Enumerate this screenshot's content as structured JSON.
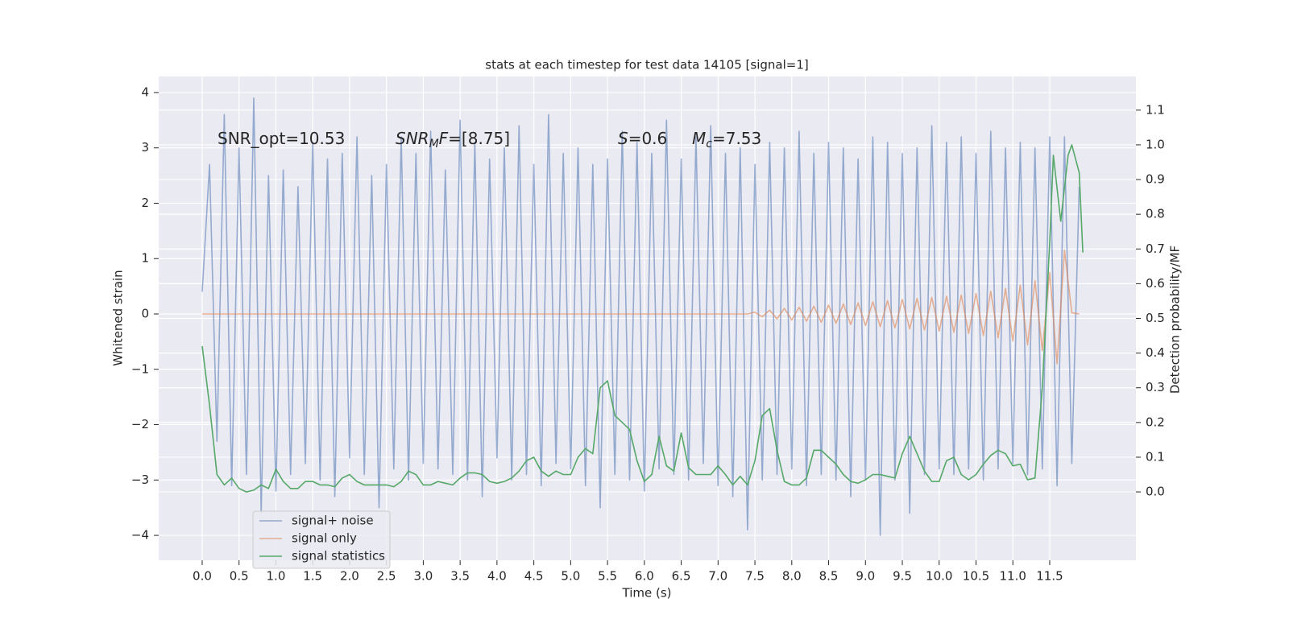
{
  "chart_data": {
    "type": "line",
    "title": "stats at each timestep for test data 14105 [signal=1]",
    "xlabel": "Time (s)",
    "ylabel": "Whitened strain",
    "y2label": "Detection probability/MF",
    "annotations": [
      [
        "SNR_opt=10.53"
      ],
      [
        "SNR",
        "M",
        "F",
        "=[8.75]"
      ],
      [
        "S",
        "=0.6"
      ],
      [
        "M",
        "c",
        "=7.53"
      ]
    ],
    "xlim": [
      -0.59,
      12.67
    ],
    "ylim": [
      -4.45,
      4.29
    ],
    "y2lim": [
      -0.197,
      1.197
    ],
    "xticks": [
      {
        "value": 0,
        "label": "0.0"
      },
      0.5,
      {
        "value": 1,
        "label": "1.0"
      },
      1.5,
      {
        "value": 2,
        "label": "2.0"
      },
      2.5,
      {
        "value": 3,
        "label": "3.0"
      },
      3.5,
      {
        "value": 4,
        "label": "4.0"
      },
      4.5,
      {
        "value": 5,
        "label": "5.0"
      },
      5.5,
      {
        "value": 6,
        "label": "6.0"
      },
      6.5,
      {
        "value": 7,
        "label": "7.0"
      },
      7.5,
      {
        "value": 8,
        "label": "8.0"
      },
      8.5,
      {
        "value": 9,
        "label": "9.0"
      },
      9.5,
      {
        "value": 10,
        "label": "10.0"
      },
      10.5,
      {
        "value": 11,
        "label": "11.0"
      },
      11.5
    ],
    "yticks": [
      {
        "value": -4,
        "label": "−4"
      },
      {
        "value": -3,
        "label": "−3"
      },
      {
        "value": -2,
        "label": "−2"
      },
      {
        "value": -1,
        "label": "−1"
      },
      0,
      1,
      2,
      3,
      4
    ],
    "y2ticks": [
      {
        "value": 0,
        "label": "0.0"
      },
      0.1,
      0.2,
      0.3,
      0.4,
      0.5,
      0.6,
      0.7,
      0.8,
      0.9,
      {
        "value": 1,
        "label": "1.0"
      },
      1.1
    ],
    "grid": true,
    "legend": "lower left",
    "background": "#eaeaf2",
    "series": [
      {
        "name": "signal+ noise",
        "color": "#4c72b0",
        "x": [
          0.0,
          0.1,
          0.2,
          0.3,
          0.4,
          0.5,
          0.6,
          0.7,
          0.8,
          0.9,
          1.0,
          1.1,
          1.2,
          1.3,
          1.4,
          1.5,
          1.6,
          1.7,
          1.8,
          1.9,
          2.0,
          2.1,
          2.2,
          2.3,
          2.4,
          2.5,
          2.6,
          2.7,
          2.8,
          2.9,
          3.0,
          3.1,
          3.2,
          3.3,
          3.4,
          3.5,
          3.6,
          3.7,
          3.8,
          3.9,
          4.0,
          4.1,
          4.2,
          4.3,
          4.4,
          4.5,
          4.6,
          4.7,
          4.8,
          4.9,
          5.0,
          5.1,
          5.2,
          5.3,
          5.4,
          5.5,
          5.6,
          5.7,
          5.8,
          5.9,
          6.0,
          6.1,
          6.2,
          6.3,
          6.4,
          6.5,
          6.6,
          6.7,
          6.8,
          6.9,
          7.0,
          7.1,
          7.2,
          7.3,
          7.4,
          7.5,
          7.6,
          7.7,
          7.8,
          7.9,
          8.0,
          8.1,
          8.2,
          8.3,
          8.4,
          8.5,
          8.6,
          8.7,
          8.8,
          8.9,
          9.0,
          9.1,
          9.2,
          9.3,
          9.4,
          9.5,
          9.6,
          9.7,
          9.8,
          9.9,
          10.0,
          10.1,
          10.2,
          10.3,
          10.4,
          10.5,
          10.6,
          10.7,
          10.8,
          10.9,
          11.0,
          11.1,
          11.2,
          11.3,
          11.4,
          11.5,
          11.6,
          11.7,
          11.8,
          11.9
        ],
        "values": [
          0.4,
          2.7,
          -2.3,
          3.6,
          -3.1,
          3.0,
          -2.9,
          3.9,
          -3.6,
          2.5,
          -3.2,
          2.6,
          -2.9,
          2.3,
          -2.7,
          3.1,
          -3.0,
          2.8,
          -3.3,
          2.9,
          -2.6,
          3.2,
          -2.9,
          2.5,
          -3.5,
          2.7,
          -2.8,
          3.2,
          -3.0,
          2.9,
          -2.7,
          3.3,
          -2.8,
          2.6,
          -2.9,
          3.5,
          -3.0,
          3.1,
          -3.3,
          2.8,
          -2.6,
          3.0,
          -3.0,
          3.4,
          -2.9,
          2.7,
          -3.1,
          3.6,
          -2.7,
          2.9,
          -2.8,
          3.0,
          -3.1,
          2.7,
          -3.5,
          2.8,
          -2.9,
          3.3,
          -3.0,
          3.1,
          -3.2,
          2.9,
          -2.8,
          3.5,
          -2.9,
          2.8,
          -3.0,
          3.2,
          -2.7,
          3.4,
          -3.1,
          2.9,
          -3.3,
          3.0,
          -3.9,
          2.7,
          -3.0,
          3.1,
          -2.9,
          3.0,
          -2.8,
          3.3,
          -3.1,
          2.9,
          -2.9,
          3.1,
          -3.0,
          3.0,
          -3.3,
          2.8,
          -3.0,
          3.2,
          -4.0,
          3.1,
          -3.0,
          2.9,
          -3.6,
          3.0,
          -2.9,
          3.4,
          -2.8,
          3.1,
          -2.9,
          3.2,
          -2.8,
          2.9,
          -3.0,
          3.3,
          -2.8,
          3.0,
          -2.7,
          3.1,
          -2.9,
          3.0,
          -2.8,
          3.2,
          -3.1,
          3.2,
          -2.7,
          2.3
        ]
      },
      {
        "name": "signal only",
        "color": "#dd8452",
        "x": [
          0.0,
          0.1,
          0.2,
          0.3,
          0.4,
          0.5,
          0.6,
          0.7,
          0.8,
          0.9,
          1.0,
          1.1,
          1.2,
          1.3,
          1.4,
          1.5,
          1.6,
          1.7,
          1.8,
          1.9,
          2.0,
          2.1,
          2.2,
          2.3,
          2.4,
          2.5,
          2.6,
          2.7,
          2.8,
          2.9,
          3.0,
          3.1,
          3.2,
          3.3,
          3.4,
          3.5,
          3.6,
          3.7,
          3.8,
          3.9,
          4.0,
          4.1,
          4.2,
          4.3,
          4.4,
          4.5,
          4.6,
          4.7,
          4.8,
          4.9,
          5.0,
          5.1,
          5.2,
          5.3,
          5.4,
          5.5,
          5.6,
          5.7,
          5.8,
          5.9,
          6.0,
          6.1,
          6.2,
          6.3,
          6.4,
          6.5,
          6.6,
          6.7,
          6.8,
          6.9,
          7.0,
          7.1,
          7.2,
          7.3,
          7.4,
          7.5,
          7.6,
          7.7,
          7.8,
          7.9,
          8.0,
          8.1,
          8.2,
          8.3,
          8.4,
          8.5,
          8.6,
          8.7,
          8.8,
          8.9,
          9.0,
          9.1,
          9.2,
          9.3,
          9.4,
          9.5,
          9.6,
          9.7,
          9.8,
          9.9,
          10.0,
          10.1,
          10.2,
          10.3,
          10.4,
          10.5,
          10.6,
          10.7,
          10.8,
          10.9,
          11.0,
          11.1,
          11.2,
          11.3,
          11.4,
          11.5,
          11.6,
          11.7,
          11.8,
          11.9
        ],
        "values": [
          0,
          0,
          0,
          0,
          0,
          0,
          0,
          0,
          0,
          0,
          0,
          0,
          0,
          0,
          0,
          0,
          0,
          0,
          0,
          0,
          0,
          0,
          0,
          0,
          0,
          0,
          0,
          0,
          0,
          0,
          0,
          0,
          0,
          0,
          0,
          0,
          0,
          0,
          0,
          0,
          0,
          0,
          0,
          0,
          0,
          0,
          0,
          0,
          0,
          0,
          0,
          0,
          0,
          0,
          0,
          0,
          0,
          0,
          0,
          0,
          0,
          0,
          0,
          0,
          0,
          0,
          0,
          0,
          0,
          0,
          0,
          0,
          0,
          0,
          0,
          0.03,
          -0.05,
          0.07,
          -0.09,
          0.1,
          -0.11,
          0.12,
          -0.13,
          0.14,
          -0.15,
          0.16,
          -0.17,
          0.18,
          -0.19,
          0.2,
          -0.21,
          0.22,
          -0.23,
          0.24,
          -0.25,
          0.26,
          -0.27,
          0.28,
          -0.29,
          0.3,
          -0.31,
          0.32,
          -0.33,
          0.34,
          -0.35,
          0.37,
          -0.39,
          0.41,
          -0.43,
          0.46,
          -0.49,
          0.52,
          -0.56,
          0.6,
          -0.66,
          0.75,
          -0.9,
          1.15,
          0.02,
          0.0
        ]
      },
      {
        "name": "signal statistics",
        "color": "#55a868",
        "axis": "y2",
        "x": [
          0.0,
          0.1,
          0.2,
          0.3,
          0.4,
          0.5,
          0.6,
          0.7,
          0.8,
          0.9,
          1.0,
          1.1,
          1.2,
          1.3,
          1.4,
          1.5,
          1.6,
          1.7,
          1.8,
          1.9,
          2.0,
          2.1,
          2.2,
          2.3,
          2.4,
          2.5,
          2.6,
          2.7,
          2.8,
          2.9,
          3.0,
          3.1,
          3.2,
          3.3,
          3.4,
          3.5,
          3.6,
          3.7,
          3.8,
          3.9,
          4.0,
          4.1,
          4.2,
          4.3,
          4.4,
          4.5,
          4.6,
          4.7,
          4.8,
          4.9,
          5.0,
          5.1,
          5.2,
          5.3,
          5.4,
          5.5,
          5.6,
          5.7,
          5.8,
          5.9,
          6.0,
          6.1,
          6.2,
          6.3,
          6.4,
          6.5,
          6.6,
          6.7,
          6.8,
          6.9,
          7.0,
          7.1,
          7.2,
          7.3,
          7.4,
          7.5,
          7.6,
          7.7,
          7.8,
          7.9,
          8.0,
          8.1,
          8.2,
          8.3,
          8.4,
          8.5,
          8.6,
          8.7,
          8.8,
          8.9,
          9.0,
          9.1,
          9.2,
          9.3,
          9.4,
          9.5,
          9.6,
          9.7,
          9.8,
          9.9,
          10.0,
          10.1,
          10.2,
          10.3,
          10.4,
          10.5,
          10.6,
          10.7,
          10.8,
          10.9,
          11.0,
          11.1,
          11.2,
          11.3,
          11.4,
          11.5,
          11.55,
          11.65,
          11.75,
          11.8,
          11.9,
          11.95
        ],
        "values": [
          0.42,
          0.25,
          0.05,
          0.02,
          0.04,
          0.01,
          0.0,
          0.005,
          0.02,
          0.01,
          0.065,
          0.03,
          0.01,
          0.01,
          0.03,
          0.03,
          0.02,
          0.02,
          0.015,
          0.04,
          0.05,
          0.03,
          0.02,
          0.02,
          0.02,
          0.02,
          0.015,
          0.03,
          0.06,
          0.05,
          0.02,
          0.02,
          0.03,
          0.025,
          0.02,
          0.04,
          0.055,
          0.055,
          0.05,
          0.03,
          0.025,
          0.03,
          0.04,
          0.06,
          0.09,
          0.1,
          0.06,
          0.045,
          0.06,
          0.05,
          0.05,
          0.1,
          0.125,
          0.11,
          0.3,
          0.32,
          0.22,
          0.2,
          0.18,
          0.09,
          0.03,
          0.05,
          0.16,
          0.075,
          0.06,
          0.17,
          0.07,
          0.05,
          0.05,
          0.05,
          0.075,
          0.05,
          0.02,
          0.045,
          0.02,
          0.09,
          0.22,
          0.24,
          0.12,
          0.03,
          0.02,
          0.02,
          0.04,
          0.12,
          0.12,
          0.1,
          0.08,
          0.05,
          0.03,
          0.025,
          0.035,
          0.05,
          0.05,
          0.045,
          0.04,
          0.11,
          0.16,
          0.11,
          0.06,
          0.03,
          0.03,
          0.09,
          0.1,
          0.05,
          0.035,
          0.05,
          0.08,
          0.105,
          0.12,
          0.11,
          0.075,
          0.08,
          0.035,
          0.04,
          0.3,
          0.72,
          0.97,
          0.78,
          0.97,
          1.0,
          0.92,
          0.69
        ]
      }
    ]
  }
}
